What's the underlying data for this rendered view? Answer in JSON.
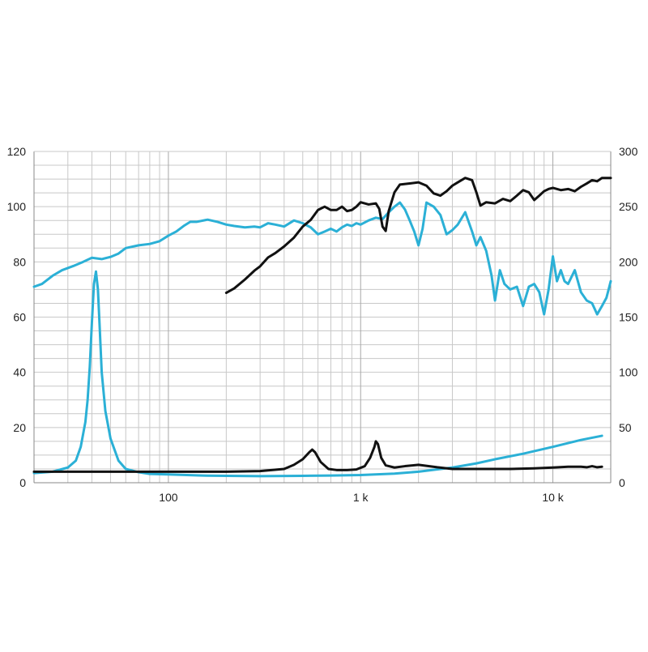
{
  "chart_data": {
    "type": "line",
    "x_scale": "log",
    "grid": true,
    "title": "",
    "xlabel": "",
    "ylabel_left": "",
    "ylabel_right": "",
    "xlim": [
      20,
      20000
    ],
    "ylim_left": [
      0,
      120
    ],
    "ylim_right": [
      0,
      300
    ],
    "x_tick_labels": [
      {
        "value": 100,
        "label": "100"
      },
      {
        "value": 1000,
        "label": "1 k"
      },
      {
        "value": 10000,
        "label": "10 k"
      }
    ],
    "y_left_ticks": [
      0,
      20,
      40,
      60,
      80,
      100,
      120
    ],
    "y_right_ticks": [
      0,
      50,
      100,
      150,
      200,
      250,
      300
    ],
    "colors": {
      "cyan": "#2bb0d6",
      "black": "#111111",
      "grid": "#c8c8c8",
      "axis": "#888888"
    },
    "series": [
      {
        "axis": "left",
        "color": "#2bb0d6",
        "points": [
          [
            20,
            71
          ],
          [
            22,
            72
          ],
          [
            25,
            75
          ],
          [
            28,
            77
          ],
          [
            32,
            78.5
          ],
          [
            36,
            80
          ],
          [
            40,
            81.5
          ],
          [
            45,
            81
          ],
          [
            50,
            81.8
          ],
          [
            55,
            83
          ],
          [
            60,
            85
          ],
          [
            70,
            86
          ],
          [
            80,
            86.5
          ],
          [
            90,
            87.5
          ],
          [
            100,
            89.5
          ],
          [
            110,
            91
          ],
          [
            120,
            93
          ],
          [
            130,
            94.5
          ],
          [
            140,
            94.5
          ],
          [
            160,
            95.3
          ],
          [
            180,
            94.5
          ],
          [
            200,
            93.5
          ],
          [
            220,
            93
          ],
          [
            250,
            92.5
          ],
          [
            280,
            92.8
          ],
          [
            300,
            92.5
          ],
          [
            330,
            94
          ],
          [
            360,
            93.5
          ],
          [
            400,
            92.8
          ],
          [
            450,
            95
          ],
          [
            500,
            94
          ],
          [
            550,
            92.5
          ],
          [
            600,
            90
          ],
          [
            650,
            91
          ],
          [
            700,
            92
          ],
          [
            750,
            91
          ],
          [
            800,
            92.5
          ],
          [
            850,
            93.5
          ],
          [
            900,
            93
          ],
          [
            950,
            94
          ],
          [
            1000,
            93.5
          ],
          [
            1100,
            95
          ],
          [
            1200,
            96
          ],
          [
            1300,
            95.5
          ],
          [
            1400,
            98
          ],
          [
            1500,
            100
          ],
          [
            1600,
            101.5
          ],
          [
            1700,
            99
          ],
          [
            1800,
            95
          ],
          [
            1900,
            91
          ],
          [
            2000,
            86
          ],
          [
            2100,
            92
          ],
          [
            2200,
            101.5
          ],
          [
            2400,
            100
          ],
          [
            2600,
            97
          ],
          [
            2800,
            90
          ],
          [
            3000,
            91.5
          ],
          [
            3200,
            93.5
          ],
          [
            3500,
            98
          ],
          [
            3800,
            91
          ],
          [
            4000,
            86
          ],
          [
            4200,
            89
          ],
          [
            4500,
            84
          ],
          [
            4800,
            75
          ],
          [
            5000,
            66
          ],
          [
            5300,
            77
          ],
          [
            5600,
            72
          ],
          [
            6000,
            70
          ],
          [
            6500,
            71
          ],
          [
            7000,
            64
          ],
          [
            7500,
            71
          ],
          [
            8000,
            72
          ],
          [
            8500,
            69
          ],
          [
            9000,
            61
          ],
          [
            9500,
            70
          ],
          [
            10000,
            82
          ],
          [
            10500,
            73
          ],
          [
            11000,
            77
          ],
          [
            11500,
            73
          ],
          [
            12000,
            72
          ],
          [
            13000,
            77
          ],
          [
            14000,
            69
          ],
          [
            15000,
            66
          ],
          [
            16000,
            65
          ],
          [
            17000,
            61
          ],
          [
            18000,
            64
          ],
          [
            19000,
            67
          ],
          [
            19500,
            70
          ],
          [
            20000,
            73
          ]
        ]
      },
      {
        "axis": "right",
        "color": "#111111",
        "points": [
          [
            200,
            172
          ],
          [
            220,
            176
          ],
          [
            250,
            184
          ],
          [
            280,
            192
          ],
          [
            300,
            196
          ],
          [
            330,
            204
          ],
          [
            360,
            208
          ],
          [
            400,
            214
          ],
          [
            450,
            222
          ],
          [
            500,
            232
          ],
          [
            550,
            238
          ],
          [
            600,
            247
          ],
          [
            650,
            250
          ],
          [
            700,
            247
          ],
          [
            750,
            247
          ],
          [
            800,
            250
          ],
          [
            850,
            246
          ],
          [
            900,
            247
          ],
          [
            950,
            250
          ],
          [
            1000,
            254
          ],
          [
            1100,
            252
          ],
          [
            1200,
            253
          ],
          [
            1250,
            248
          ],
          [
            1300,
            232
          ],
          [
            1350,
            228
          ],
          [
            1400,
            246
          ],
          [
            1500,
            263
          ],
          [
            1600,
            270
          ],
          [
            1800,
            271
          ],
          [
            2000,
            272
          ],
          [
            2200,
            269
          ],
          [
            2400,
            262
          ],
          [
            2600,
            260
          ],
          [
            2800,
            264
          ],
          [
            3000,
            269
          ],
          [
            3200,
            272
          ],
          [
            3500,
            276
          ],
          [
            3800,
            274
          ],
          [
            4000,
            263
          ],
          [
            4200,
            251
          ],
          [
            4500,
            254
          ],
          [
            5000,
            253
          ],
          [
            5500,
            257
          ],
          [
            6000,
            255
          ],
          [
            6500,
            260
          ],
          [
            7000,
            265
          ],
          [
            7500,
            263
          ],
          [
            8000,
            256
          ],
          [
            8500,
            260
          ],
          [
            9000,
            264
          ],
          [
            9500,
            266
          ],
          [
            10000,
            267
          ],
          [
            11000,
            265
          ],
          [
            12000,
            266
          ],
          [
            13000,
            264
          ],
          [
            14000,
            268
          ],
          [
            15000,
            271
          ],
          [
            16000,
            274
          ],
          [
            17000,
            273
          ],
          [
            18000,
            276
          ],
          [
            20000,
            276
          ]
        ]
      },
      {
        "axis": "left",
        "color": "#2bb0d6",
        "points": [
          [
            20,
            3.5
          ],
          [
            25,
            4
          ],
          [
            30,
            5.5
          ],
          [
            33,
            8
          ],
          [
            35,
            13
          ],
          [
            37,
            22
          ],
          [
            38,
            30
          ],
          [
            39,
            42
          ],
          [
            40,
            58
          ],
          [
            41,
            72
          ],
          [
            42,
            76.5
          ],
          [
            43,
            70
          ],
          [
            44,
            55
          ],
          [
            45,
            40
          ],
          [
            47,
            26
          ],
          [
            50,
            16
          ],
          [
            55,
            8
          ],
          [
            60,
            5
          ],
          [
            70,
            3.8
          ],
          [
            80,
            3.2
          ],
          [
            100,
            3
          ],
          [
            150,
            2.6
          ],
          [
            200,
            2.5
          ],
          [
            300,
            2.4
          ],
          [
            500,
            2.5
          ],
          [
            700,
            2.6
          ],
          [
            1000,
            2.8
          ],
          [
            1500,
            3.3
          ],
          [
            2000,
            4
          ],
          [
            3000,
            5.5
          ],
          [
            4000,
            7
          ],
          [
            5000,
            8.5
          ],
          [
            7000,
            10.5
          ],
          [
            10000,
            13
          ],
          [
            14000,
            15.5
          ],
          [
            18000,
            17
          ]
        ]
      },
      {
        "axis": "left",
        "color": "#111111",
        "points": [
          [
            20,
            4
          ],
          [
            50,
            4
          ],
          [
            100,
            4
          ],
          [
            200,
            4
          ],
          [
            300,
            4.2
          ],
          [
            400,
            5
          ],
          [
            450,
            6.5
          ],
          [
            500,
            8.5
          ],
          [
            540,
            11
          ],
          [
            560,
            12
          ],
          [
            580,
            11
          ],
          [
            620,
            7.5
          ],
          [
            680,
            5
          ],
          [
            750,
            4.6
          ],
          [
            850,
            4.6
          ],
          [
            950,
            4.8
          ],
          [
            1050,
            6
          ],
          [
            1120,
            9
          ],
          [
            1180,
            13
          ],
          [
            1200,
            15
          ],
          [
            1230,
            14
          ],
          [
            1280,
            9
          ],
          [
            1350,
            6.3
          ],
          [
            1500,
            5.5
          ],
          [
            1700,
            6
          ],
          [
            2000,
            6.5
          ],
          [
            2500,
            5.6
          ],
          [
            3000,
            5
          ],
          [
            4000,
            5
          ],
          [
            6000,
            5
          ],
          [
            8000,
            5.2
          ],
          [
            10000,
            5.5
          ],
          [
            12000,
            5.8
          ],
          [
            14000,
            5.8
          ],
          [
            15000,
            5.6
          ],
          [
            16000,
            6
          ],
          [
            17000,
            5.6
          ],
          [
            18000,
            5.8
          ]
        ]
      }
    ]
  }
}
